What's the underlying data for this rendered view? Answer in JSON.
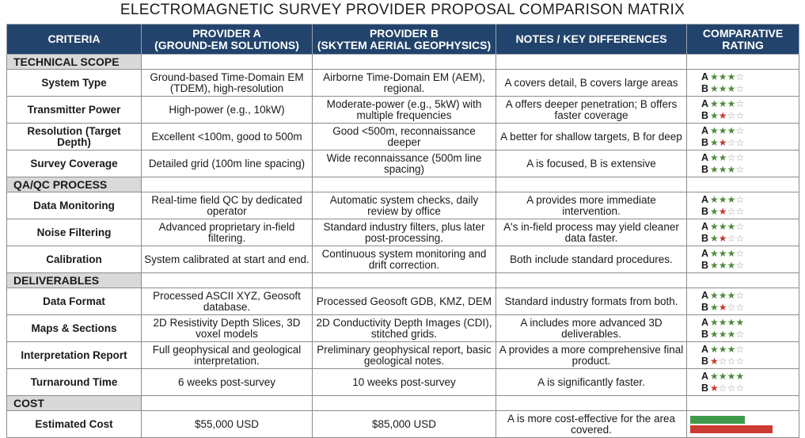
{
  "title": "ELECTROMAGNETIC SURVEY PROVIDER PROPOSAL COMPARISON MATRIX",
  "headers": [
    "CRITERIA",
    "PROVIDER A\n(GROUND-EM SOLUTIONS)",
    "PROVIDER B\n(SKYTEM AERIAL GEOPHYSICS)",
    "NOTES / KEY DIFFERENCES",
    "COMPARATIVE\nRATING"
  ],
  "rating_labels": {
    "a": "A",
    "b": "B"
  },
  "colors": {
    "header_bg": "#22436b",
    "section_bg": "#d9d9d9",
    "star_on": "#4f8a3c",
    "star_low": "#c0392b",
    "star_off": "#a0a0a0",
    "cost_green": "#3f9a4a",
    "cost_red": "#cc3a33"
  },
  "sections": [
    {
      "name": "TECHNICAL SCOPE",
      "rows": [
        {
          "criteria": "System Type",
          "a": "Ground-based Time-Domain EM (TDEM), high-resolution",
          "b": "Airborne Time-Domain EM (AEM), regional.",
          "notes": "A covers detail, B covers large areas",
          "rating_a": 3,
          "rating_b": 3
        },
        {
          "criteria": "Transmitter Power",
          "a": "High-power (e.g., 10kW)",
          "b": "Moderate-power (e.g., 5kW) with multiple frequencies",
          "notes": "A offers deeper penetration; B offers faster coverage",
          "rating_a": 3,
          "rating_b": 2
        },
        {
          "criteria": "Resolution (Target Depth)",
          "a": "Excellent <100m, good to 500m",
          "b": "Good <500m, reconnaissance deeper",
          "notes": "A better for shallow targets, B for deep",
          "rating_a": 3,
          "rating_b": 2
        },
        {
          "criteria": "Survey Coverage",
          "a": "Detailed grid (100m line spacing)",
          "b": "Wide reconnaissance (500m line spacing)",
          "notes": "A is focused, B is extensive",
          "rating_a": 2,
          "rating_b": 3
        }
      ]
    },
    {
      "name": "QA/QC PROCESS",
      "rows": [
        {
          "criteria": "Data Monitoring",
          "a": "Real-time field QC by dedicated operator",
          "b": "Automatic system checks, daily review by office",
          "notes": "A provides more immediate intervention.",
          "rating_a": 3,
          "rating_b": 2
        },
        {
          "criteria": "Noise Filtering",
          "a": "Advanced proprietary in-field filtering.",
          "b": "Standard industry filters, plus later post-processing.",
          "notes": "A's in-field process may yield cleaner data faster.",
          "rating_a": 3,
          "rating_b": 2
        },
        {
          "criteria": "Calibration",
          "a": "System calibrated at start and end.",
          "b": "Continuous system monitoring and drift correction.",
          "notes": "Both include standard procedures.",
          "rating_a": 3,
          "rating_b": 3
        }
      ]
    },
    {
      "name": "DELIVERABLES",
      "rows": [
        {
          "criteria": "Data Format",
          "a": "Processed ASCII XYZ, Geosoft database.",
          "b": "Processed Geosoft GDB, KMZ, DEM",
          "notes": "Standard industry formats from both.",
          "rating_a": 3,
          "rating_b": 2
        },
        {
          "criteria": "Maps & Sections",
          "a": "2D Resistivity Depth Slices, 3D voxel models",
          "b": "2D Conductivity Depth Images (CDI), stitched grids.",
          "notes": "A includes more advanced 3D deliverables.",
          "rating_a": 4,
          "rating_b": 3
        },
        {
          "criteria": "Interpretation Report",
          "a": "Full geophysical and geological interpretation.",
          "b": "Preliminary geophysical report, basic geological notes.",
          "notes": "A provides a more comprehensive final product.",
          "rating_a": 3,
          "rating_b": 1
        },
        {
          "criteria": "Turnaround Time",
          "a": "6 weeks post-survey",
          "b": "10 weeks post-survey",
          "notes": "A is significantly faster.",
          "rating_a": 4,
          "rating_b": 1
        }
      ]
    },
    {
      "name": "COST",
      "rows": [
        {
          "criteria": "Estimated Cost",
          "a": "$55,000 USD",
          "b": "$85,000 USD",
          "notes": "A is more cost-effective for the area covered.",
          "cost_bar": true,
          "cost_a": 55000,
          "cost_b": 85000
        }
      ]
    }
  ]
}
